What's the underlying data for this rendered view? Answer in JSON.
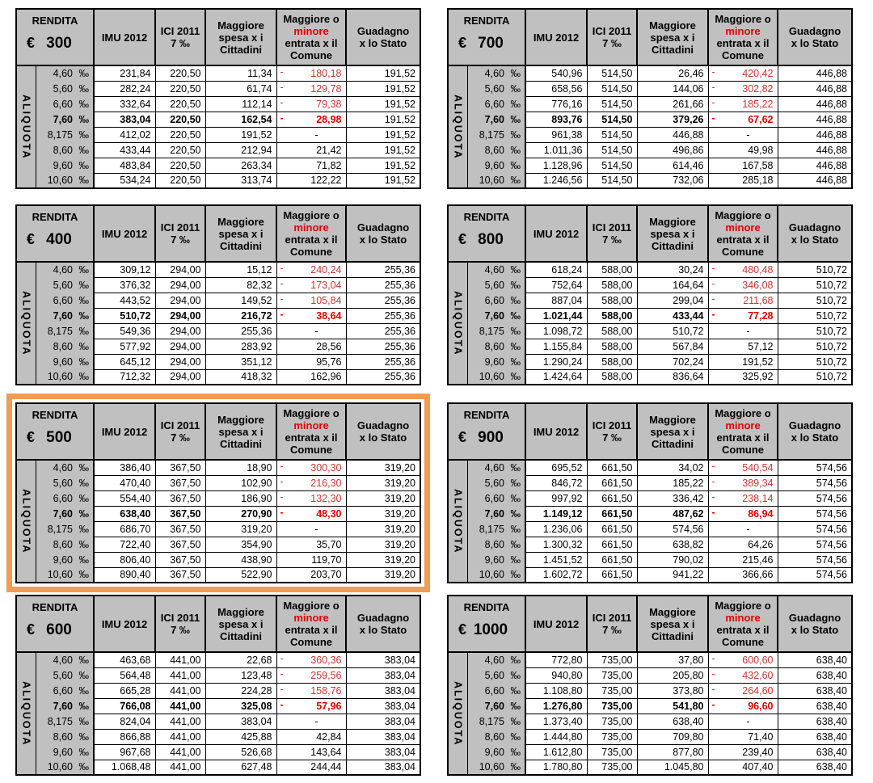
{
  "labels": {
    "rendita": "RENDITA",
    "euro": "€",
    "aliquota": "ALIQUOTA",
    "permille": "‰",
    "imu": "IMU 2012",
    "ici_lines": [
      "ICI 2011",
      "7 ‰"
    ],
    "spesa_lines": [
      "Maggiore",
      "spesa x i",
      "Cittadini"
    ],
    "comune_lines": [
      "Maggiore o",
      "minore",
      "entrata x il",
      "Comune"
    ],
    "comune_red_line_index": 1,
    "stato_lines": [
      "Guadagno",
      "x lo Stato"
    ]
  },
  "rates": [
    "4,60",
    "5,60",
    "6,60",
    "7,60",
    "8,175",
    "8,60",
    "9,60",
    "10,60"
  ],
  "bold_rate_index": 3,
  "colors": {
    "header_bg": "#C0C0C0",
    "grid": "#000000",
    "negative_red": "#CC3333",
    "negative_red_bold": "#E00000",
    "highlight_border": "#F19C52"
  },
  "tables": [
    {
      "rendita": "300",
      "highlighted": false,
      "rows": [
        [
          "231,84",
          "220,50",
          "11,34",
          "-180,18",
          "191,52"
        ],
        [
          "282,24",
          "220,50",
          "61,74",
          "-129,78",
          "191,52"
        ],
        [
          "332,64",
          "220,50",
          "112,14",
          "-79,38",
          "191,52"
        ],
        [
          "383,04",
          "220,50",
          "162,54",
          "-28,98",
          "191,52"
        ],
        [
          "412,02",
          "220,50",
          "191,52",
          "-",
          "191,52"
        ],
        [
          "433,44",
          "220,50",
          "212,94",
          "21,42",
          "191,52"
        ],
        [
          "483,84",
          "220,50",
          "263,34",
          "71,82",
          "191,52"
        ],
        [
          "534,24",
          "220,50",
          "313,74",
          "122,22",
          "191,52"
        ]
      ]
    },
    {
      "rendita": "700",
      "highlighted": false,
      "rows": [
        [
          "540,96",
          "514,50",
          "26,46",
          "-420,42",
          "446,88"
        ],
        [
          "658,56",
          "514,50",
          "144,06",
          "-302,82",
          "446,88"
        ],
        [
          "776,16",
          "514,50",
          "261,66",
          "-185,22",
          "446,88"
        ],
        [
          "893,76",
          "514,50",
          "379,26",
          "-67,62",
          "446,88"
        ],
        [
          "961,38",
          "514,50",
          "446,88",
          "-",
          "446,88"
        ],
        [
          "1.011,36",
          "514,50",
          "496,86",
          "49,98",
          "446,88"
        ],
        [
          "1.128,96",
          "514,50",
          "614,46",
          "167,58",
          "446,88"
        ],
        [
          "1.246,56",
          "514,50",
          "732,06",
          "285,18",
          "446,88"
        ]
      ]
    },
    {
      "rendita": "400",
      "highlighted": false,
      "rows": [
        [
          "309,12",
          "294,00",
          "15,12",
          "-240,24",
          "255,36"
        ],
        [
          "376,32",
          "294,00",
          "82,32",
          "-173,04",
          "255,36"
        ],
        [
          "443,52",
          "294,00",
          "149,52",
          "-105,84",
          "255,36"
        ],
        [
          "510,72",
          "294,00",
          "216,72",
          "-38,64",
          "255,36"
        ],
        [
          "549,36",
          "294,00",
          "255,36",
          "-",
          "255,36"
        ],
        [
          "577,92",
          "294,00",
          "283,92",
          "28,56",
          "255,36"
        ],
        [
          "645,12",
          "294,00",
          "351,12",
          "95,76",
          "255,36"
        ],
        [
          "712,32",
          "294,00",
          "418,32",
          "162,96",
          "255,36"
        ]
      ]
    },
    {
      "rendita": "800",
      "highlighted": false,
      "rows": [
        [
          "618,24",
          "588,00",
          "30,24",
          "-480,48",
          "510,72"
        ],
        [
          "752,64",
          "588,00",
          "164,64",
          "-346,08",
          "510,72"
        ],
        [
          "887,04",
          "588,00",
          "299,04",
          "-211,68",
          "510,72"
        ],
        [
          "1.021,44",
          "588,00",
          "433,44",
          "-77,28",
          "510,72"
        ],
        [
          "1.098,72",
          "588,00",
          "510,72",
          "-",
          "510,72"
        ],
        [
          "1.155,84",
          "588,00",
          "567,84",
          "57,12",
          "510,72"
        ],
        [
          "1.290,24",
          "588,00",
          "702,24",
          "191,52",
          "510,72"
        ],
        [
          "1.424,64",
          "588,00",
          "836,64",
          "325,92",
          "510,72"
        ]
      ]
    },
    {
      "rendita": "500",
      "highlighted": true,
      "rows": [
        [
          "386,40",
          "367,50",
          "18,90",
          "-300,30",
          "319,20"
        ],
        [
          "470,40",
          "367,50",
          "102,90",
          "-216,30",
          "319,20"
        ],
        [
          "554,40",
          "367,50",
          "186,90",
          "-132,30",
          "319,20"
        ],
        [
          "638,40",
          "367,50",
          "270,90",
          "-48,30",
          "319,20"
        ],
        [
          "686,70",
          "367,50",
          "319,20",
          "-",
          "319,20"
        ],
        [
          "722,40",
          "367,50",
          "354,90",
          "35,70",
          "319,20"
        ],
        [
          "806,40",
          "367,50",
          "438,90",
          "119,70",
          "319,20"
        ],
        [
          "890,40",
          "367,50",
          "522,90",
          "203,70",
          "319,20"
        ]
      ]
    },
    {
      "rendita": "900",
      "highlighted": false,
      "rows": [
        [
          "695,52",
          "661,50",
          "34,02",
          "-540,54",
          "574,56"
        ],
        [
          "846,72",
          "661,50",
          "185,22",
          "-389,34",
          "574,56"
        ],
        [
          "997,92",
          "661,50",
          "336,42",
          "-238,14",
          "574,56"
        ],
        [
          "1.149,12",
          "661,50",
          "487,62",
          "-86,94",
          "574,56"
        ],
        [
          "1.236,06",
          "661,50",
          "574,56",
          "-",
          "574,56"
        ],
        [
          "1.300,32",
          "661,50",
          "638,82",
          "64,26",
          "574,56"
        ],
        [
          "1.451,52",
          "661,50",
          "790,02",
          "215,46",
          "574,56"
        ],
        [
          "1.602,72",
          "661,50",
          "941,22",
          "366,66",
          "574,56"
        ]
      ]
    },
    {
      "rendita": "600",
      "highlighted": false,
      "rows": [
        [
          "463,68",
          "441,00",
          "22,68",
          "-360,36",
          "383,04"
        ],
        [
          "564,48",
          "441,00",
          "123,48",
          "-259,56",
          "383,04"
        ],
        [
          "665,28",
          "441,00",
          "224,28",
          "-158,76",
          "383,04"
        ],
        [
          "766,08",
          "441,00",
          "325,08",
          "-57,96",
          "383,04"
        ],
        [
          "824,04",
          "441,00",
          "383,04",
          "-",
          "383,04"
        ],
        [
          "866,88",
          "441,00",
          "425,88",
          "42,84",
          "383,04"
        ],
        [
          "967,68",
          "441,00",
          "526,68",
          "143,64",
          "383,04"
        ],
        [
          "1.068,48",
          "441,00",
          "627,48",
          "244,44",
          "383,04"
        ]
      ]
    },
    {
      "rendita": "1000",
      "highlighted": false,
      "rows": [
        [
          "772,80",
          "735,00",
          "37,80",
          "-600,60",
          "638,40"
        ],
        [
          "940,80",
          "735,00",
          "205,80",
          "-432,60",
          "638,40"
        ],
        [
          "1.108,80",
          "735,00",
          "373,80",
          "-264,60",
          "638,40"
        ],
        [
          "1.276,80",
          "735,00",
          "541,80",
          "-96,60",
          "638,40"
        ],
        [
          "1.373,40",
          "735,00",
          "638,40",
          "-",
          "638,40"
        ],
        [
          "1.444,80",
          "735,00",
          "709,80",
          "71,40",
          "638,40"
        ],
        [
          "1.612,80",
          "735,00",
          "877,80",
          "239,40",
          "638,40"
        ],
        [
          "1.780,80",
          "735,00",
          "1.045,80",
          "407,40",
          "638,40"
        ]
      ]
    }
  ]
}
